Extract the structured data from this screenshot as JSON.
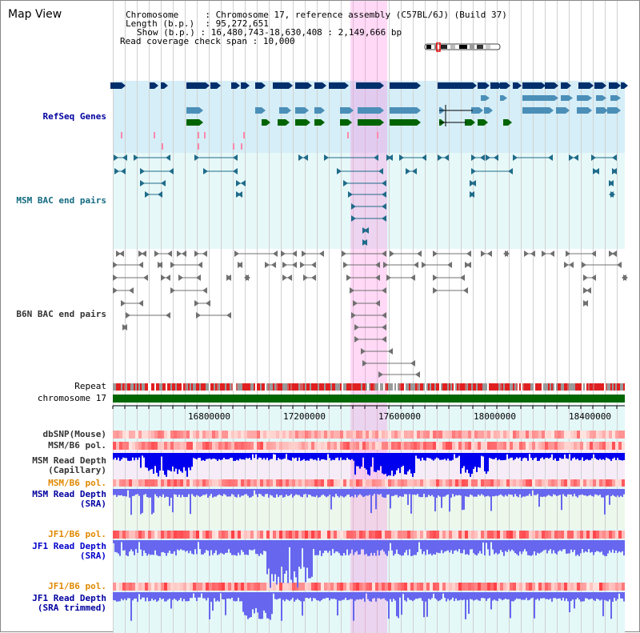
{
  "view": {
    "title": "Map View",
    "info": [
      {
        "key": "Chromosome",
        "value": "Chromosome 17, reference assembly (C57BL/6J) (Build 37)"
      },
      {
        "key": "Length (b.p.)",
        "value": "95,272,651"
      },
      {
        "key": "Show (b.p.)",
        "value": "16,480,743-18,630,408 : 2,149,666 bp"
      },
      {
        "key": "Read coverage check span",
        "value": "10,000"
      }
    ]
  },
  "tracks": {
    "refseq": "RefSeq Genes",
    "msm_bac": "MSM BAC end pairs",
    "b6n_bac": "B6N BAC end pairs",
    "repeat": "Repeat",
    "chromosome": "chromosome 17",
    "dbsnp": "dbSNP(Mouse)",
    "msm_b6_pol": "MSM/B6 pol.",
    "msm_depth_cap": [
      "MSM Read Depth",
      "(Capillary)"
    ],
    "msm_b6_pol2": "MSM/B6 pol.",
    "msm_depth_sra": [
      "MSM Read Depth",
      "(SRA)"
    ],
    "jf1_b6_pol": "JF1/B6 pol.",
    "jf1_depth_sra": [
      "JF1 Read Depth",
      "(SRA)"
    ],
    "jf1_b6_pol2": "JF1/B6 pol.",
    "jf1_depth_trim": [
      "JF1 Read Depth",
      "(SRA trimmed)"
    ]
  },
  "axis": {
    "ticks": [
      "16800000",
      "17200000",
      "17600000",
      "18000000",
      "18400000"
    ]
  },
  "colors": {
    "refseq_bg": "#d6eef8",
    "msm_bg": "#e6f8f8",
    "b6n_bg": "#ffffff",
    "lower_bg": "#e4f8f8",
    "highlight": "#ff78dc",
    "gene_dark": "#002f6c",
    "gene_mid": "#4b8fb8",
    "gene_green": "#006400",
    "msm_arrow": "#1f6b8a",
    "b6n_arrow": "#707070",
    "chrom_green": "#006600",
    "depth_blue": "#0000ee",
    "depth_light": "#6666ee"
  }
}
